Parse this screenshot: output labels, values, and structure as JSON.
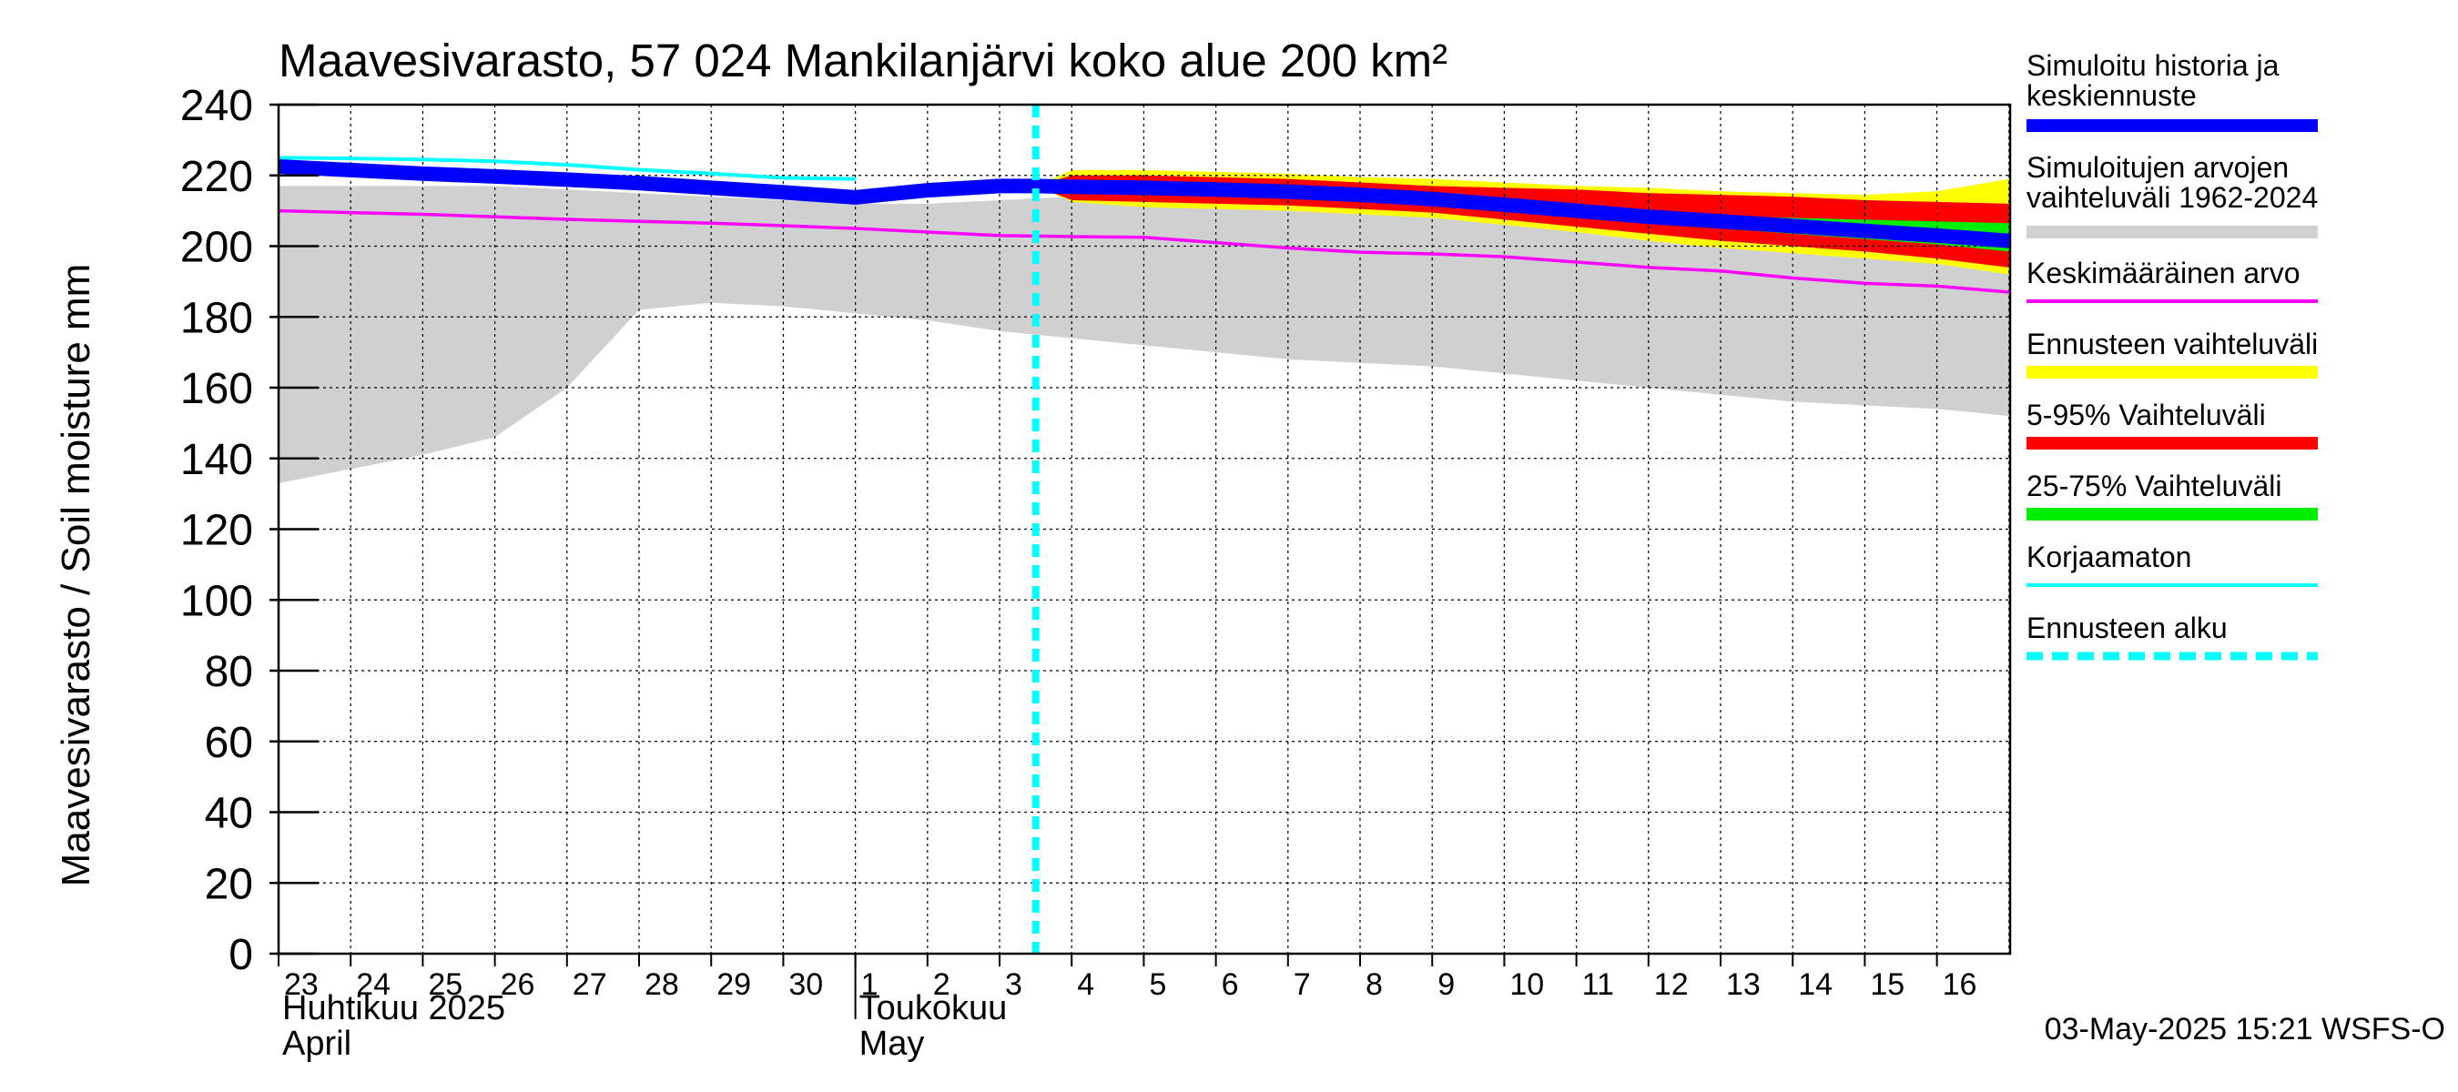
{
  "chart_data": {
    "type": "area",
    "title": "Maavesivarasto, 57 024 Mankilanjärvi koko alue 200 km²",
    "ylabel": "Maavesivarasto / Soil moisture   mm",
    "ylim": [
      0,
      240
    ],
    "yticks": [
      0,
      20,
      40,
      60,
      80,
      100,
      120,
      140,
      160,
      180,
      200,
      220,
      240
    ],
    "x_days": [
      "23",
      "24",
      "25",
      "26",
      "27",
      "28",
      "29",
      "30",
      "1",
      "2",
      "3",
      "4",
      "5",
      "6",
      "7",
      "8",
      "9",
      "10",
      "11",
      "12",
      "13",
      "14",
      "15",
      "16"
    ],
    "month_labels": [
      {
        "fi": "Huhtikuu  2025",
        "en": "April",
        "start_index": 0
      },
      {
        "fi": "Toukokuu",
        "en": "May",
        "start_index": 8
      }
    ],
    "forecast_start_x": 10.0,
    "timestamp": "03-May-2025 15:21 WSFS-O",
    "legend": [
      {
        "label": "Simuloitu historia ja keskiennuste",
        "lines": [
          "Simuloitu historia ja",
          "keskiennuste"
        ],
        "color": "#0000ff",
        "style": "thick"
      },
      {
        "label": "Simuloitujen arvojen vaihteluväli 1962-2024",
        "lines": [
          "Simuloitujen arvojen",
          "vaihteluväli 1962-2024"
        ],
        "color": "#d0d0d0",
        "style": "thick"
      },
      {
        "label": "Keskimääräinen arvo",
        "lines": [
          "Keskimääräinen arvo"
        ],
        "color": "#ff00ff",
        "style": "thin"
      },
      {
        "label": "Ennusteen vaihteluväli",
        "lines": [
          "Ennusteen vaihteluväli"
        ],
        "color": "#ffff00",
        "style": "thick"
      },
      {
        "label": "5-95% Vaihteluväli",
        "lines": [
          "5-95% Vaihteluväli"
        ],
        "color": "#ff0000",
        "style": "thick"
      },
      {
        "label": "25-75% Vaihteluväli",
        "lines": [
          "25-75% Vaihteluväli"
        ],
        "color": "#00ee00",
        "style": "thick"
      },
      {
        "label": "Korjaamaton",
        "lines": [
          "Korjaamaton"
        ],
        "color": "#00ffff",
        "style": "thin"
      },
      {
        "label": "Ennusteen alku",
        "lines": [
          "Ennusteen alku"
        ],
        "color": "#00ffff",
        "style": "dashed"
      }
    ],
    "series": {
      "historical_range": {
        "x": [
          -0.5,
          0.5,
          1.5,
          2.5,
          3.5,
          4.5,
          5.5,
          6.5,
          7.5,
          8.5,
          9.5,
          10.5,
          11.5,
          12.5,
          13.5,
          14.5,
          15.5,
          16.5,
          17.5,
          18.5,
          19.5,
          20.5,
          21.5,
          22.5,
          23.5
        ],
        "upper": [
          217,
          217,
          217,
          217,
          216,
          215,
          214,
          213,
          212,
          212,
          213,
          214,
          214,
          214,
          214,
          213,
          212,
          211,
          210,
          209,
          208,
          207,
          206,
          205,
          204
        ],
        "lower": [
          133,
          137,
          141,
          146,
          160,
          182,
          184,
          183,
          181,
          179,
          176,
          174,
          172,
          170,
          168,
          167,
          166,
          164,
          162,
          160,
          158,
          156,
          155,
          154,
          152
        ]
      },
      "mean": {
        "x": [
          -0.5,
          0.5,
          1.5,
          2.5,
          3.5,
          4.5,
          5.5,
          6.5,
          7.5,
          8.5,
          9.5,
          10.5,
          11.5,
          12.5,
          13.5,
          14.5,
          15.5,
          16.5,
          17.5,
          18.5,
          19.5,
          20.5,
          21.5,
          22.5,
          23.5
        ],
        "y": [
          210,
          209.5,
          209,
          208.3,
          207.6,
          207,
          206.5,
          205.8,
          205,
          204,
          203,
          202.7,
          202.5,
          201,
          199.5,
          198.3,
          197.8,
          197,
          195.5,
          194,
          193,
          191,
          189.5,
          188.7,
          187
        ]
      },
      "uncorrected": {
        "x": [
          -0.5,
          0.5,
          1.5,
          2.5,
          3.5,
          4.5,
          5.5,
          6.5,
          7.5
        ],
        "y": [
          225,
          224.8,
          224.5,
          224,
          223,
          221.6,
          220.5,
          219.3,
          219
        ]
      },
      "forecast_envelope": {
        "x": [
          10,
          10.5,
          11.5,
          12.5,
          13.5,
          14.5,
          15.5,
          16.5,
          17.5,
          18.5,
          19.5,
          20.5,
          21.5,
          22.5,
          23.5
        ],
        "upper": [
          217,
          221.5,
          221.5,
          221,
          220.5,
          219.5,
          219,
          218,
          217,
          216.5,
          215.5,
          215,
          214.5,
          215.5,
          219
        ],
        "lower": [
          217,
          212.5,
          211,
          210.5,
          210,
          209,
          208,
          206,
          204,
          201.5,
          199.5,
          198,
          196.5,
          195,
          192
        ]
      },
      "p5_95": {
        "x": [
          10,
          10.5,
          11.5,
          12.5,
          13.5,
          14.5,
          15.5,
          16.5,
          17.5,
          18.5,
          19.5,
          20.5,
          21.5,
          22.5,
          23.5
        ],
        "upper": [
          217,
          220,
          220,
          219.5,
          219,
          218,
          217,
          216.5,
          216,
          215,
          214.5,
          214,
          213,
          212.5,
          212
        ],
        "lower": [
          217,
          213,
          212.5,
          212,
          211.5,
          210.5,
          209.5,
          207.5,
          205.5,
          203.5,
          201.5,
          200,
          198.5,
          196.5,
          194
        ]
      },
      "p25_75": {
        "x": [
          10,
          10.5,
          11.5,
          12.5,
          13.5,
          14.5,
          15.5,
          16.5,
          17.5,
          18.5,
          19.5,
          20.5,
          21.5,
          22.5,
          23.5
        ],
        "upper": [
          217,
          217.5,
          217.5,
          217,
          216.5,
          215.5,
          214.5,
          213,
          211.5,
          209.5,
          208.5,
          208,
          207.5,
          207,
          206.5
        ],
        "lower": [
          217,
          216,
          215.5,
          215,
          214.5,
          213.5,
          212,
          210.5,
          208.5,
          206.5,
          205,
          203.5,
          202,
          200.5,
          198.5
        ]
      },
      "simulated": {
        "x": [
          -0.5,
          0.5,
          1.5,
          2.5,
          3.5,
          4.5,
          5.5,
          6.5,
          7.5,
          8.5,
          9.5,
          10,
          10.5,
          11.5,
          12.5,
          13.5,
          14.5,
          15.5,
          16.5,
          17.5,
          18.5,
          19.5,
          20.5,
          21.5,
          22.5,
          23.5
        ],
        "y": [
          222.5,
          221.5,
          220.5,
          219.7,
          218.8,
          217.8,
          216.5,
          215.2,
          213.8,
          215.8,
          217,
          217,
          216.8,
          216.5,
          216,
          215.4,
          214.5,
          213.3,
          211.7,
          210,
          208.3,
          207,
          205.7,
          204.3,
          203,
          201.5
        ]
      }
    }
  }
}
